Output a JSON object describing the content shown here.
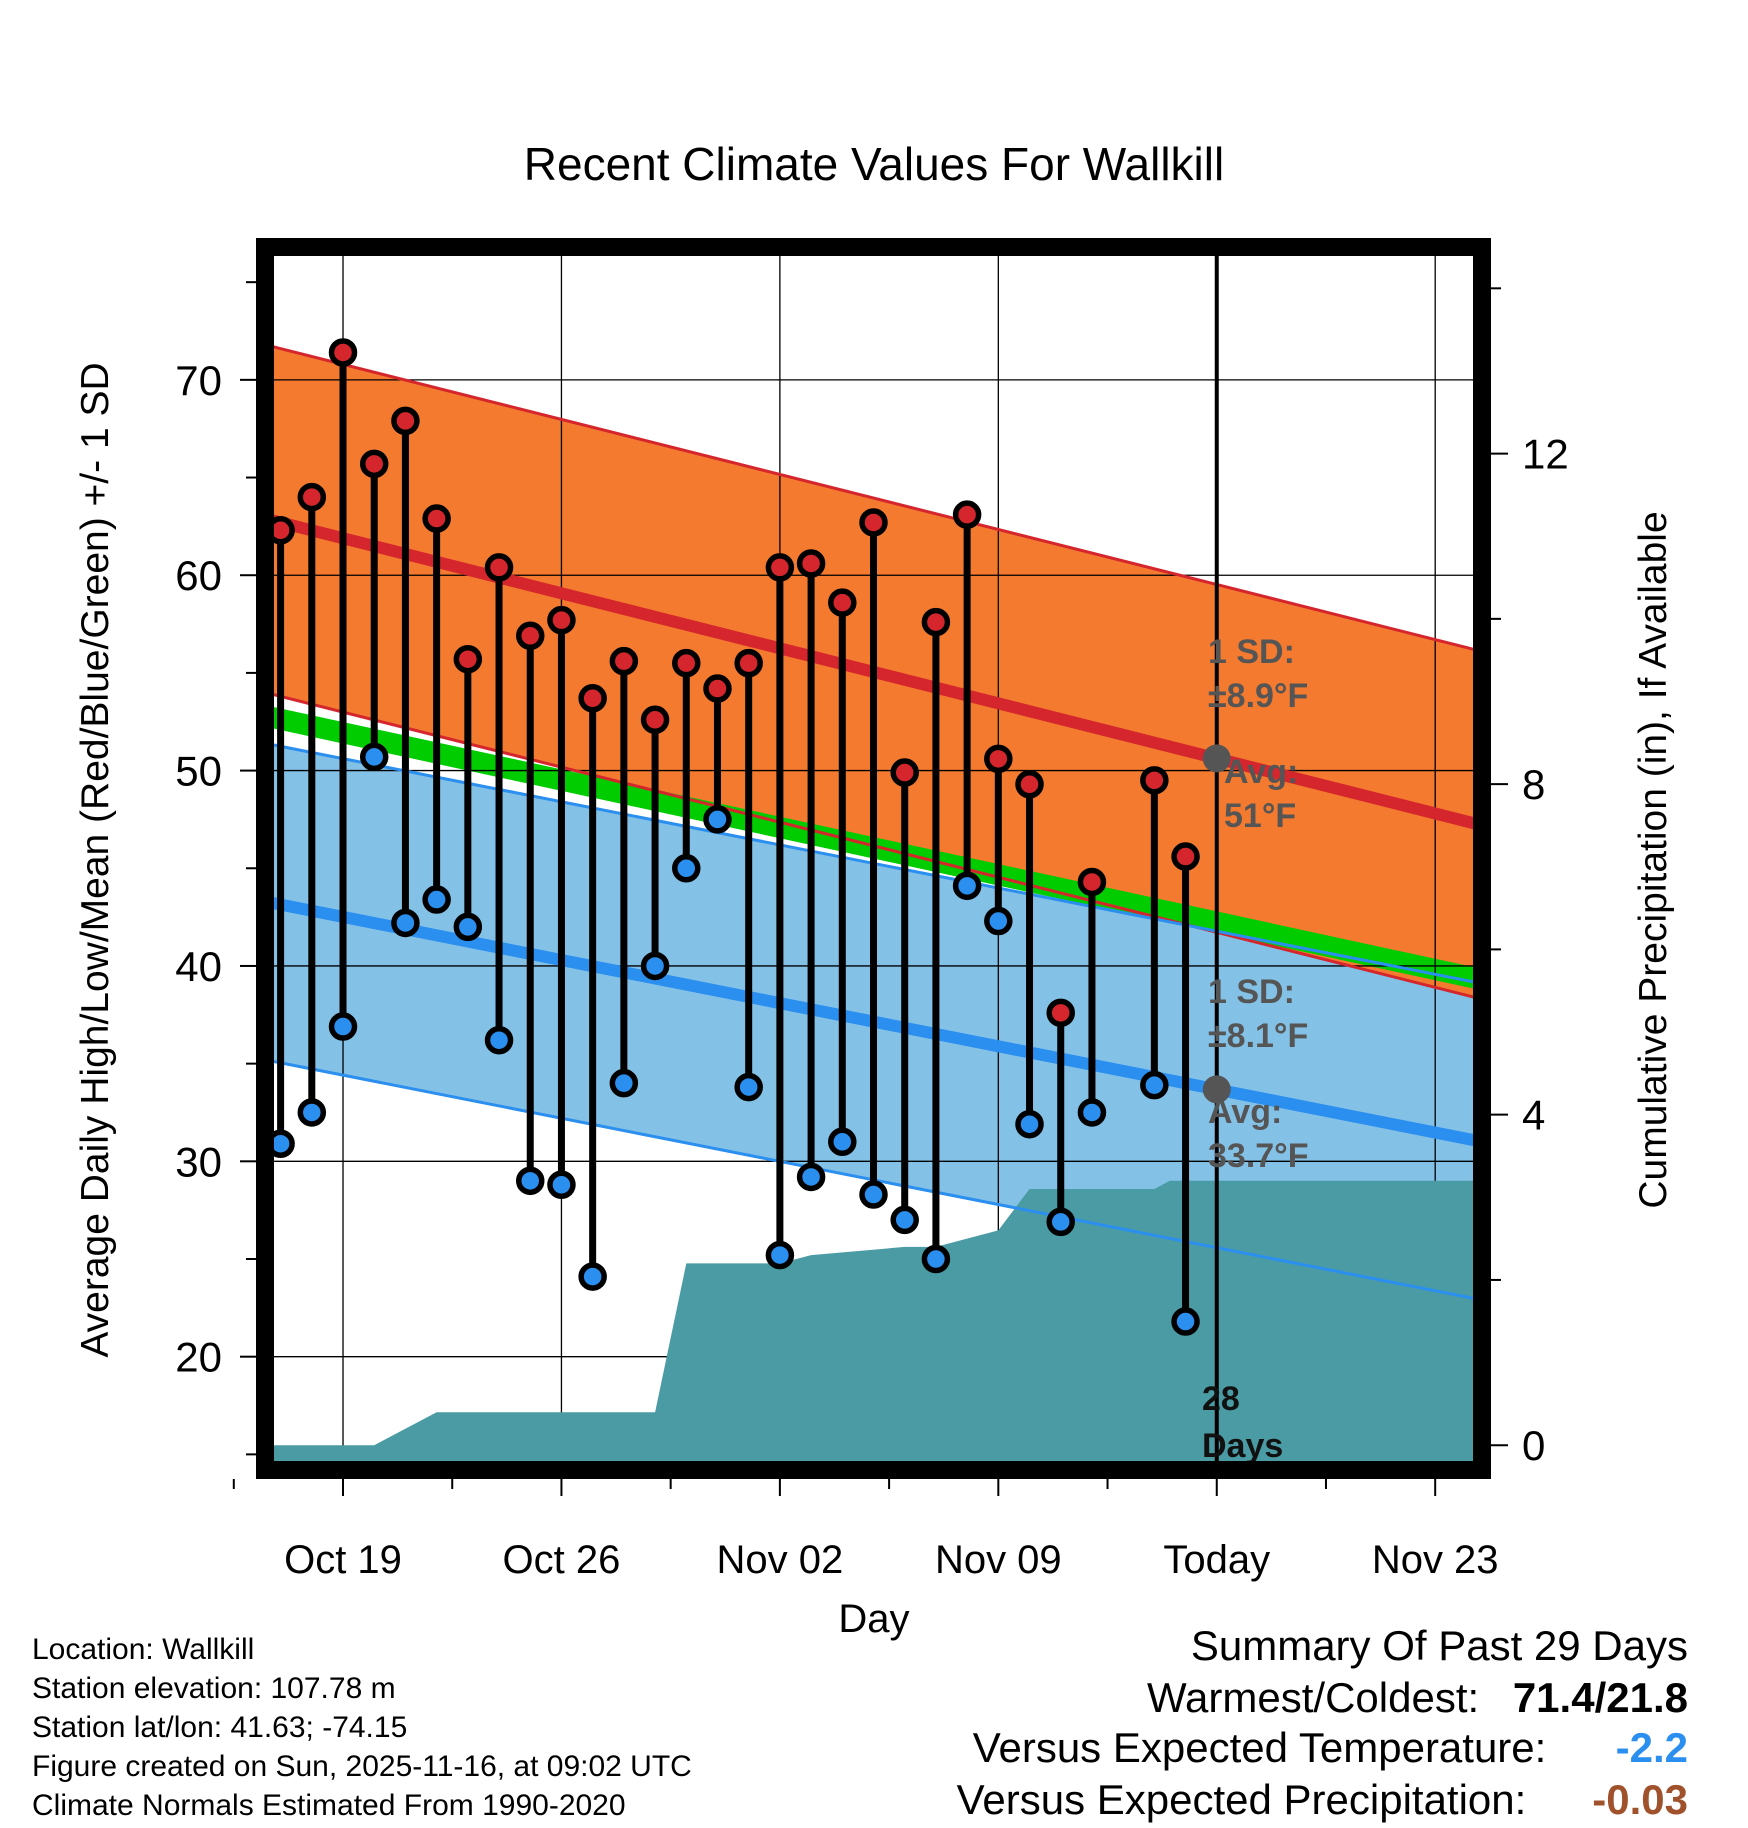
{
  "chart_data": {
    "type": "dumbbell",
    "title": "Recent Climate Values For Wallkill",
    "xlabel": "Day",
    "ylabel": "Average Daily High/Low/Mean (Red/Blue/Green) +/- 1 SD",
    "y2label": "Cumulative Precipitation (in), If Available",
    "xlim": [
      -2.5,
      36.5
    ],
    "ylim": [
      14.2,
      76.8
    ],
    "y2lim": [
      -0.3,
      14.5
    ],
    "xticks": [
      {
        "day": 0,
        "label": "Oct 19"
      },
      {
        "day": 7,
        "label": "Oct 26"
      },
      {
        "day": 14,
        "label": "Nov 02"
      },
      {
        "day": 21,
        "label": "Nov 09"
      },
      {
        "day": 28,
        "label": "Today"
      },
      {
        "day": 35,
        "label": "Nov 23"
      }
    ],
    "yticks": [
      20,
      30,
      40,
      50,
      60,
      70
    ],
    "y2ticks": [
      0,
      4,
      8,
      12
    ],
    "days": [
      -2,
      -1,
      0,
      1,
      2,
      3,
      4,
      5,
      6,
      7,
      8,
      9,
      10,
      11,
      12,
      13,
      14,
      15,
      16,
      17,
      18,
      19,
      20,
      21,
      22,
      23,
      24,
      26,
      27
    ],
    "highs": [
      62.3,
      64.0,
      71.4,
      65.7,
      67.9,
      62.9,
      55.7,
      60.4,
      56.9,
      57.7,
      53.7,
      55.6,
      52.6,
      55.5,
      54.2,
      55.5,
      60.4,
      60.6,
      58.6,
      62.7,
      49.9,
      57.6,
      63.1,
      50.6,
      49.3,
      37.6,
      44.3,
      49.5,
      45.6
    ],
    "lows": [
      30.9,
      32.5,
      36.9,
      50.7,
      42.2,
      43.4,
      42.0,
      36.2,
      29.0,
      28.8,
      24.1,
      34.0,
      40.0,
      45.0,
      47.5,
      33.8,
      25.2,
      29.2,
      31.0,
      28.3,
      27.0,
      25.0,
      44.1,
      42.3,
      31.9,
      26.9,
      32.5,
      33.9,
      21.8
    ],
    "normal_high": {
      "start": 62.9,
      "end": 47.2,
      "sd": 8.9
    },
    "normal_low": {
      "start": 43.3,
      "end": 31.0,
      "sd": 8.1
    },
    "normal_mean": {
      "start": 52.8,
      "end": 39.3
    },
    "precip_cumulative": {
      "days": [
        -2.5,
        1.0,
        3.0,
        7.0,
        9.0,
        10.0,
        11.0,
        14.0,
        15.0,
        18.0,
        19.0,
        20.0,
        21.0,
        22.0,
        24.0,
        25.0,
        26.0,
        26.5,
        27.0,
        36.5
      ],
      "values": [
        0,
        0,
        0.4,
        0.4,
        0.4,
        0.4,
        2.2,
        2.2,
        2.3,
        2.4,
        2.4,
        2.5,
        2.6,
        3.1,
        3.1,
        3.1,
        3.1,
        3.2,
        3.2,
        3.2
      ]
    },
    "annotations": {
      "high_sd_label": "1 SD:",
      "high_sd_value": "±8.9°F",
      "high_avg_label": "Avg:",
      "high_avg_value": "51°F",
      "low_sd_label": "1 SD:",
      "low_sd_value": "±8.1°F",
      "low_avg_label": "Avg:",
      "low_avg_value": "33.7°F",
      "days_count": "28",
      "days_word": "Days"
    },
    "colors": {
      "high_band": "#f47a2f",
      "high_line": "#d4262c",
      "low_band": "#84c1e6",
      "low_line": "#2b8ff0",
      "mean_band": "#00cc00",
      "precip": "#4a9ba3",
      "high_dot": "#d4262c",
      "low_dot": "#2b8ff0",
      "avg_marker": "#555555",
      "annotation_text": "#555555"
    }
  },
  "footer": {
    "location": "Location: Wallkill",
    "elevation": "Station elevation: 107.78 m",
    "latlon": "Station lat/lon: 41.63; -74.15",
    "created": "Figure created on Sun, 2025-11-16, at 09:02 UTC",
    "normals": "Climate Normals Estimated From 1990-2020"
  },
  "summary": {
    "title": "Summary Of Past 29 Days",
    "warmest_label": "Warmest/Coldest:",
    "warmest_value": "71.4/21.8",
    "temp_label": "Versus Expected Temperature:",
    "temp_value": "-2.2",
    "temp_color": "#2b8ff0",
    "precip_label": "Versus Expected Precipitation:",
    "precip_value": "-0.03",
    "precip_color": "#a0522d"
  }
}
